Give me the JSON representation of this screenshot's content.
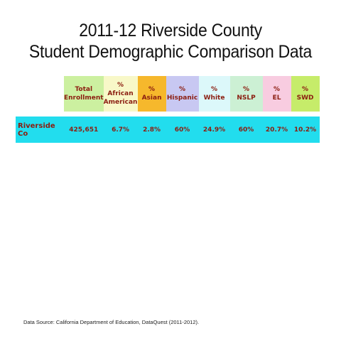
{
  "title": {
    "line1": "2011-12 Riverside County",
    "line2": "Student Demographic Comparison Data"
  },
  "source": "Data Source: California Department of Education, DataQuest (2011-2012).",
  "chart_data": {
    "type": "table",
    "columns": [
      {
        "lines": [
          "Total",
          "Enrollment"
        ],
        "color": "#ccf0a0"
      },
      {
        "lines": [
          "%",
          "African",
          "American"
        ],
        "color": "#f8f8c8"
      },
      {
        "lines": [
          "%",
          "Asian"
        ],
        "color": "#f6b82c"
      },
      {
        "lines": [
          "%",
          "Hispanic"
        ],
        "color": "#c8c8f2"
      },
      {
        "lines": [
          "%",
          "White"
        ],
        "color": "#dcf8fa"
      },
      {
        "lines": [
          "%",
          "NSLP"
        ],
        "color": "#ccf0d4"
      },
      {
        "lines": [
          "%",
          "EL"
        ],
        "color": "#f8cce0"
      },
      {
        "lines": [
          "%",
          "SWD"
        ],
        "color": "#c6ec6a"
      }
    ],
    "rows": [
      {
        "label": "Riverside Co",
        "values": [
          "425,651",
          "6.7%",
          "2.8%",
          "60%",
          "24.9%",
          "60%",
          "20.7%",
          "10.2%"
        ]
      }
    ],
    "row_color": "#22ddee"
  }
}
